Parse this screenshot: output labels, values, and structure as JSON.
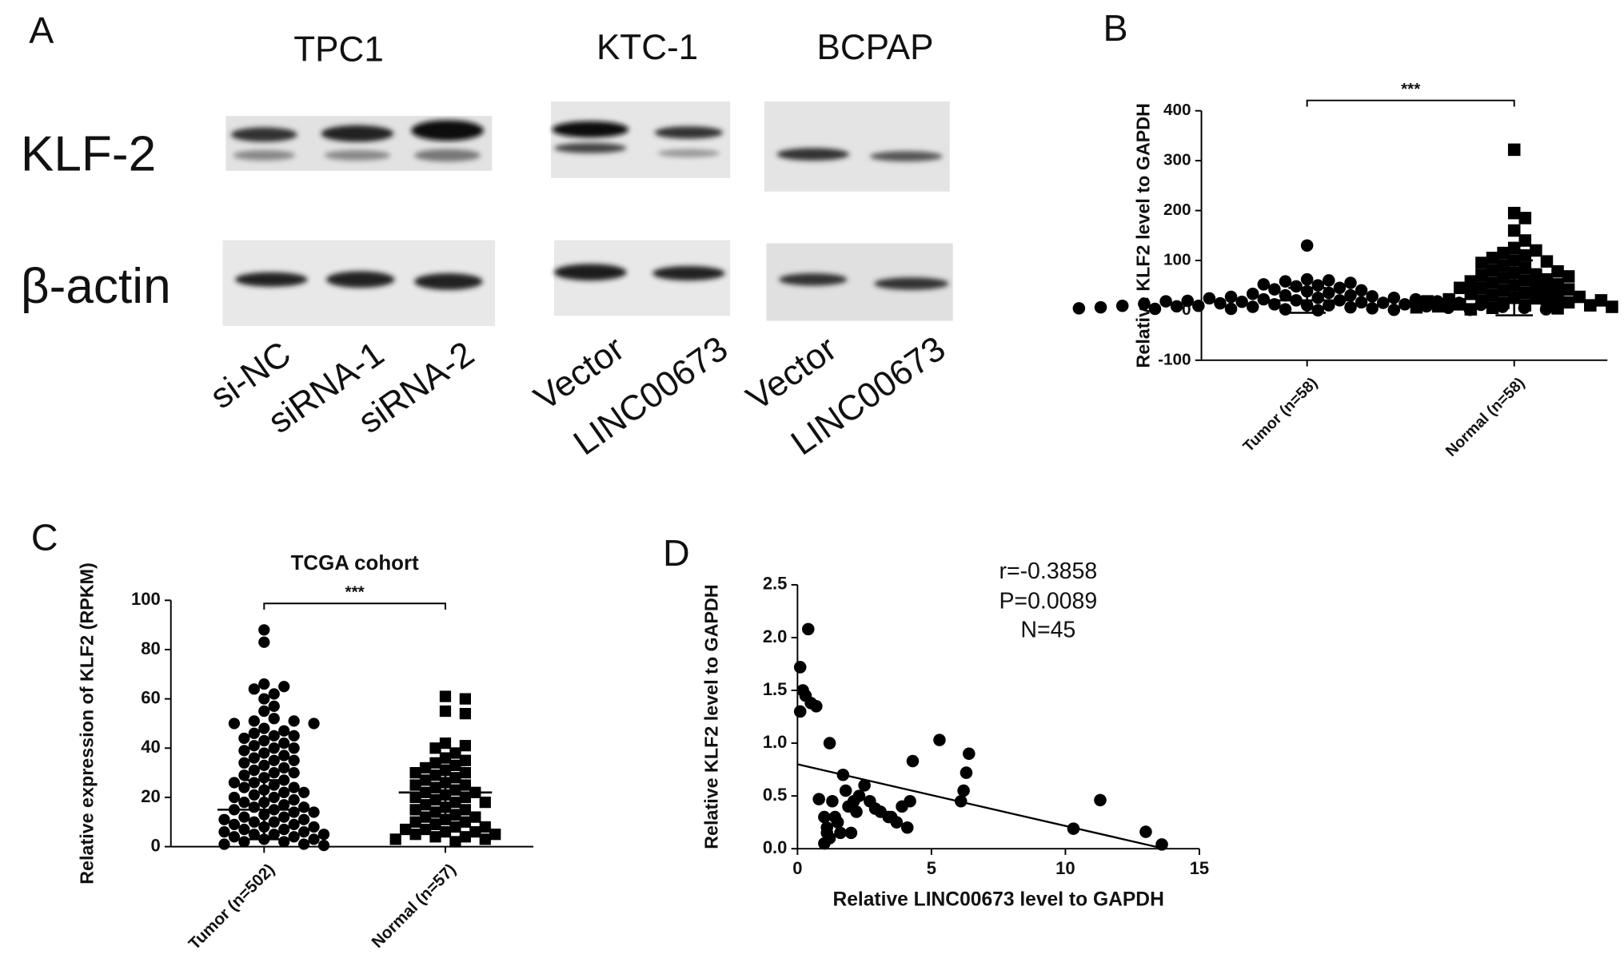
{
  "panel_a": {
    "label": "A",
    "cell_lines": [
      "TPC1",
      "KTC-1",
      "BCPAP"
    ],
    "proteins": [
      "KLF-2",
      "β-actin"
    ],
    "lanes": [
      "si-NC",
      "siRNA-1",
      "siRNA-2",
      "Vector",
      "LINC00673",
      "Vector",
      "LINC00673"
    ]
  },
  "chart_data": [
    {
      "type": "strip",
      "panel": "B",
      "y_label": "Relative KLF2 level to GAPDH",
      "categories": [
        "Tumor (n=58)",
        "Normal (n=58)"
      ],
      "groups": [
        {
          "marker": "circle",
          "color": "#000000",
          "mean": 20,
          "sd": 25,
          "values": [
            130,
            62,
            60,
            58,
            55,
            52,
            50,
            48,
            45,
            42,
            40,
            38,
            35,
            33,
            30,
            30,
            28,
            27,
            25,
            25,
            24,
            22,
            22,
            20,
            20,
            19,
            18,
            18,
            17,
            16,
            15,
            15,
            14,
            13,
            12,
            12,
            11,
            10,
            10,
            9,
            9,
            8,
            8,
            7,
            7,
            6,
            6,
            5,
            5,
            4,
            4,
            3,
            3,
            2,
            2,
            1,
            1,
            0
          ]
        },
        {
          "marker": "square",
          "color": "#000000",
          "mean": 45,
          "sd": 55,
          "values": [
            322,
            195,
            185,
            160,
            140,
            125,
            120,
            115,
            110,
            105,
            100,
            98,
            95,
            90,
            85,
            80,
            78,
            75,
            72,
            70,
            68,
            65,
            62,
            60,
            58,
            55,
            52,
            50,
            48,
            45,
            45,
            42,
            40,
            38,
            35,
            33,
            30,
            28,
            27,
            25,
            24,
            22,
            20,
            20,
            18,
            16,
            15,
            14,
            12,
            10,
            10,
            8,
            7,
            6,
            5,
            4,
            3,
            2
          ]
        }
      ],
      "ylim": [
        -100,
        400
      ],
      "yticks": [
        -100,
        0,
        100,
        200,
        300,
        400
      ],
      "significance": "***"
    },
    {
      "type": "strip",
      "panel": "C",
      "title": "TCGA cohort",
      "y_label": "Relative expression of KLF2 (RPKM)",
      "categories": [
        "Tumor (n=502)",
        "Normal (n=57)"
      ],
      "groups": [
        {
          "marker": "circle",
          "color": "#000000",
          "mean": 15,
          "sd": 12,
          "values": [
            88,
            83,
            66,
            65,
            64,
            62,
            60,
            57,
            55,
            52,
            51,
            51,
            50,
            50,
            48,
            47,
            46,
            45,
            45,
            44,
            43,
            42,
            41,
            40,
            40,
            39,
            38,
            37,
            36,
            35,
            35,
            34,
            33,
            32,
            31,
            30,
            30,
            29,
            28,
            27,
            26,
            26,
            25,
            24,
            24,
            23,
            22,
            22,
            21,
            20,
            20,
            19,
            18,
            18,
            17,
            16,
            16,
            15,
            15,
            14,
            14,
            13,
            12,
            12,
            11,
            11,
            10,
            10,
            9,
            9,
            8,
            8,
            7,
            7,
            6,
            6,
            5,
            5,
            5,
            4,
            4,
            3,
            3,
            2,
            2,
            1,
            1,
            0.5
          ]
        },
        {
          "marker": "square",
          "color": "#000000",
          "mean": 22,
          "sd": 11,
          "values": [
            61,
            60,
            55,
            54,
            42,
            41,
            40,
            38,
            36,
            35,
            34,
            33,
            32,
            31,
            30,
            30,
            29,
            28,
            27,
            26,
            25,
            25,
            24,
            23,
            22,
            22,
            21,
            20,
            20,
            19,
            18,
            18,
            17,
            16,
            15,
            15,
            14,
            13,
            12,
            12,
            11,
            10,
            10,
            9,
            8,
            8,
            7,
            7,
            6,
            6,
            5,
            5,
            4,
            4,
            3,
            3,
            2
          ]
        }
      ],
      "ylim": [
        0,
        100
      ],
      "yticks": [
        0,
        20,
        40,
        60,
        80,
        100
      ],
      "significance": "***"
    },
    {
      "type": "scatter",
      "panel": "D",
      "x_label": "Relative LINC00673 level to GAPDH",
      "y_label": "Relative KLF2 level to GAPDH",
      "color": "#000000",
      "x": [
        0.1,
        0.2,
        0.1,
        0.3,
        0.5,
        0.4,
        0.7,
        1.2,
        0.8,
        1.0,
        1.1,
        1.3,
        1.5,
        1.2,
        1.0,
        1.4,
        1.7,
        1.9,
        2.0,
        2.2,
        1.8,
        2.5,
        2.7,
        2.9,
        3.1,
        3.5,
        3.7,
        3.9,
        4.1,
        4.3,
        4.2,
        5.3,
        6.1,
        6.2,
        6.3,
        6.4,
        10.3,
        11.3,
        13.0,
        13.6,
        1.6,
        2.3,
        1.1,
        2.1,
        3.4
      ],
      "y": [
        1.72,
        1.5,
        1.3,
        1.45,
        1.38,
        2.08,
        1.35,
        1.0,
        0.47,
        0.3,
        0.2,
        0.45,
        0.25,
        0.1,
        0.05,
        0.3,
        0.7,
        0.4,
        0.15,
        0.35,
        0.55,
        0.6,
        0.45,
        0.38,
        0.35,
        0.3,
        0.25,
        0.4,
        0.2,
        0.83,
        0.45,
        1.03,
        0.45,
        0.55,
        0.72,
        0.9,
        0.19,
        0.46,
        0.16,
        0.04,
        0.15,
        0.5,
        0.15,
        0.45,
        0.3
      ],
      "fit_line": {
        "x": [
          0,
          13.7
        ],
        "y": [
          0.8,
          0
        ]
      },
      "xlim": [
        0,
        15
      ],
      "ylim": [
        0,
        2.5
      ],
      "xticks": [
        0,
        5,
        10,
        15
      ],
      "yticks": [
        {
          "value": 0,
          "label": "0.0"
        },
        {
          "value": 0.5,
          "label": "0.5"
        },
        {
          "value": 1,
          "label": "1.0"
        },
        {
          "value": 1.5,
          "label": "1.5"
        },
        {
          "value": 2,
          "label": "2.0"
        },
        {
          "value": 2.5,
          "label": "2.5"
        }
      ],
      "annotations": [
        "r=-0.3858",
        "P=0.0089",
        "N=45"
      ]
    }
  ]
}
